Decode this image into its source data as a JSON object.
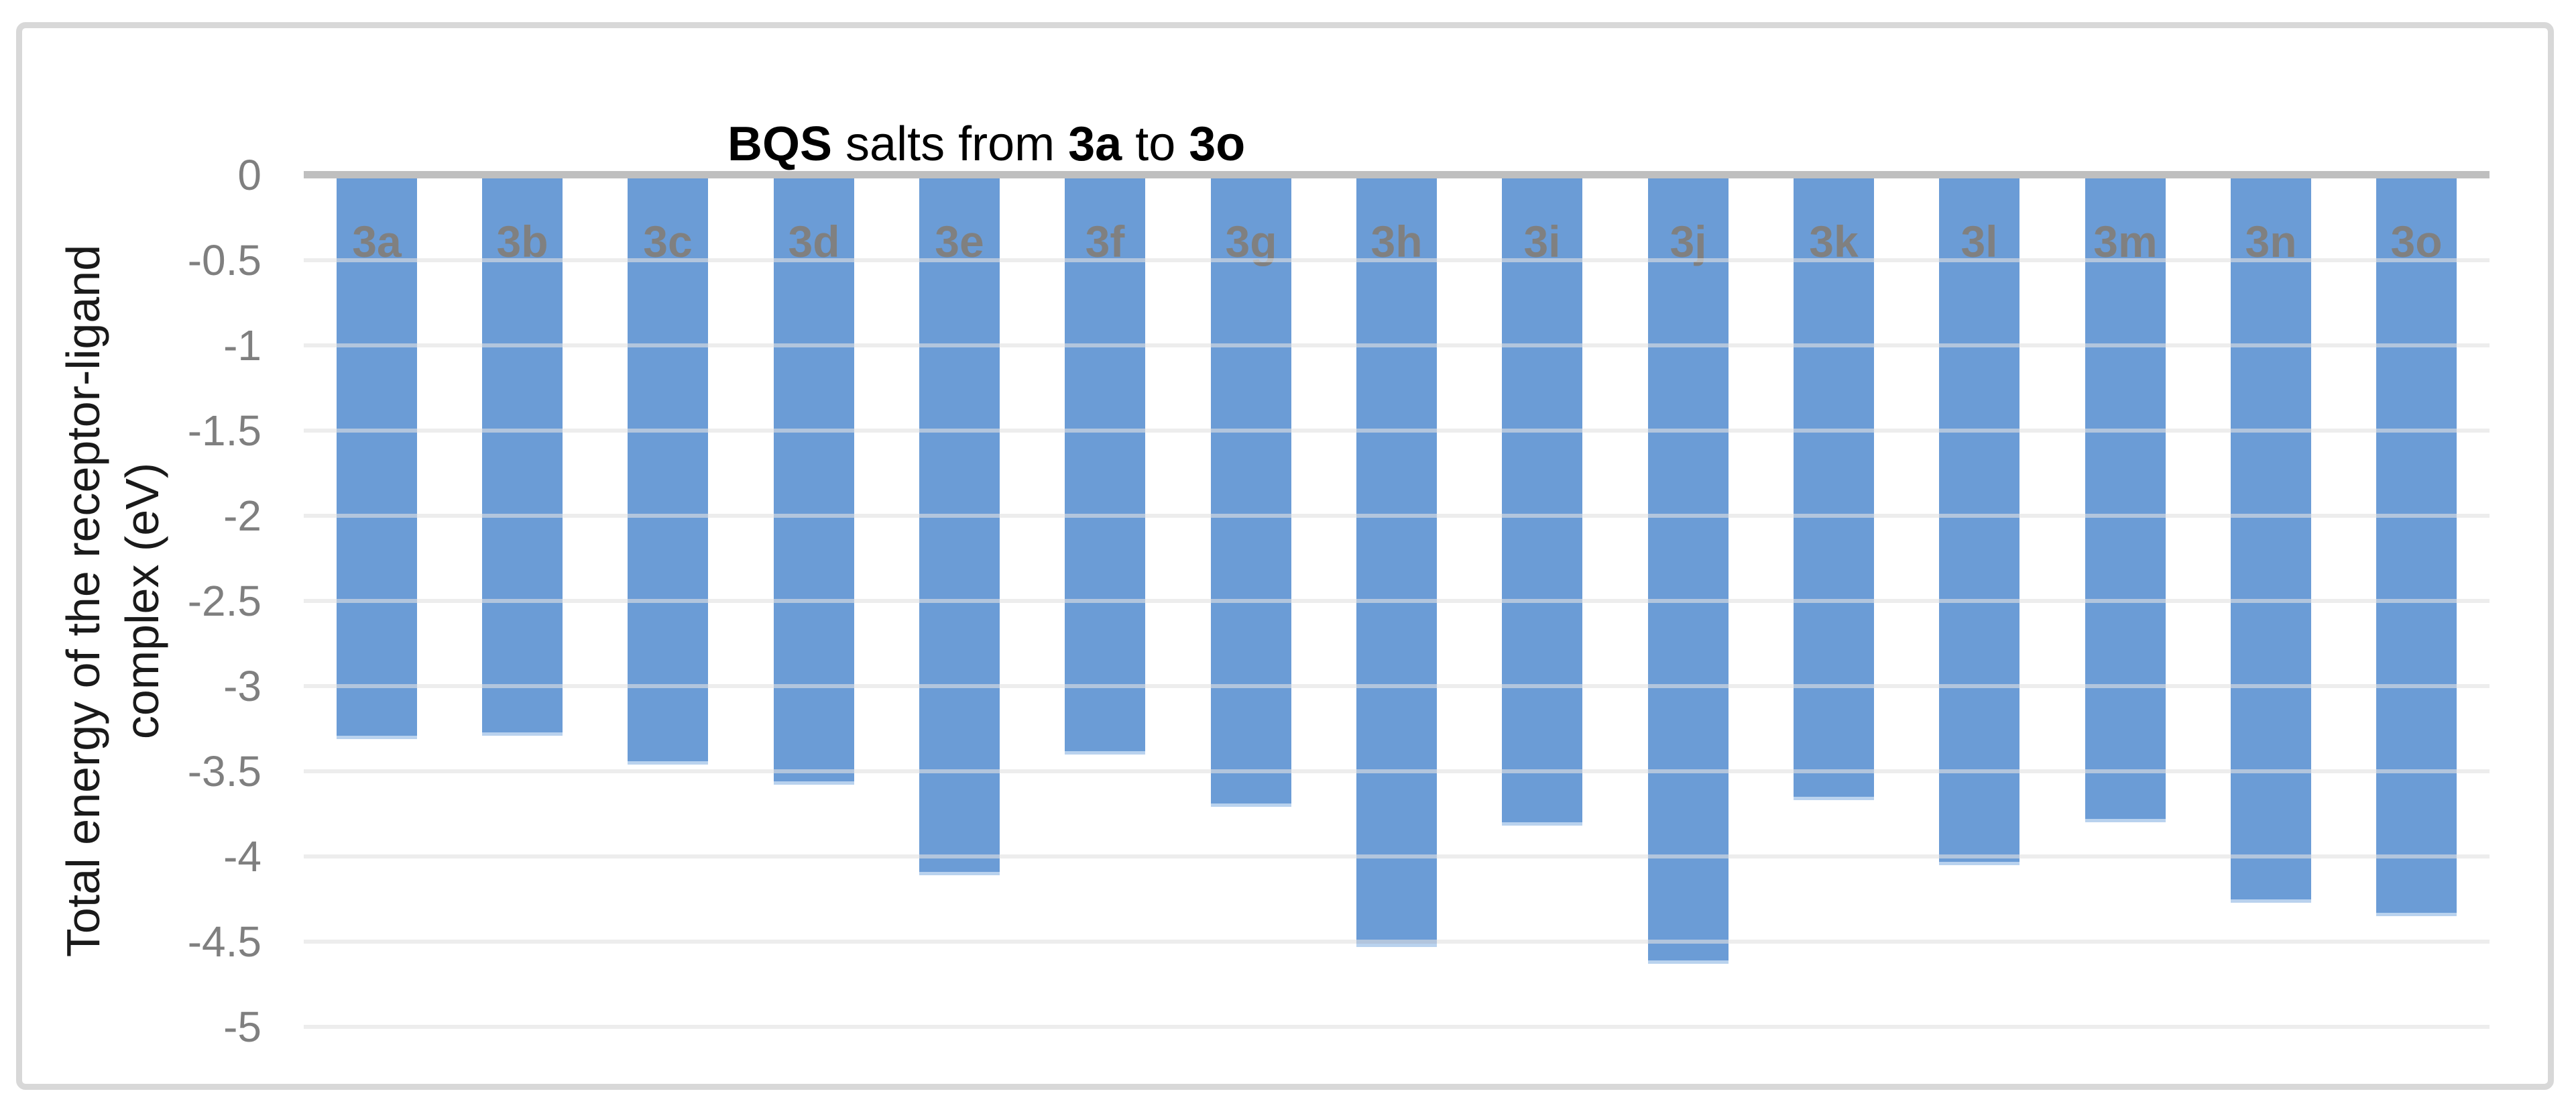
{
  "figure": {
    "kind": "excel-style bar chart figure, framed, white background"
  },
  "title": {
    "full": "BQS salts from 3a to 3o",
    "parts": [
      "BQS",
      " salts from ",
      "3a",
      " to ",
      "3o"
    ]
  },
  "y_axis": {
    "title_line1": "Total energy of the receptor-ligand",
    "title_line2": "complex (eV)"
  },
  "chart_data": {
    "type": "bar",
    "orientation": "vertical-negative",
    "title": "BQS salts from 3a to 3o",
    "xlabel": "",
    "ylabel": "Total energy of the receptor-ligand complex (eV)",
    "categories": [
      "3a",
      "3b",
      "3c",
      "3d",
      "3e",
      "3f",
      "3g",
      "3h",
      "3i",
      "3j",
      "3k",
      "3l",
      "3m",
      "3n",
      "3o"
    ],
    "values": [
      -3.31,
      -3.29,
      -3.46,
      -3.58,
      -4.11,
      -3.4,
      -3.71,
      -4.53,
      -3.82,
      -4.63,
      -3.67,
      -4.05,
      -3.8,
      -4.27,
      -4.35
    ],
    "bar_labels_position": "inside-base",
    "ylim": [
      0,
      -5
    ],
    "yticks": [
      0,
      -0.5,
      -1,
      -1.5,
      -2,
      -2.5,
      -3,
      -3.5,
      -4,
      -4.5,
      -5
    ],
    "ytick_labels": [
      "0",
      "-0.5",
      "-1",
      "-1.5",
      "-2",
      "-2.5",
      "-3",
      "-3.5",
      "-4",
      "-4.5",
      "-5"
    ],
    "grid": "horizontal-major",
    "legend": "none",
    "colors": {
      "bar_fill": "#6b9cd6",
      "bar_bottom_fringe": "#b9d2ee",
      "bar_label_text": "#808080",
      "tick_label_text": "#7f7f7f",
      "zero_axis_line": "#bfbfbf",
      "gridline": "#f1f1f1",
      "frame_border": "#d8d8d8",
      "title_text": "#000000",
      "axis_title_text": "#1a1a1a"
    }
  }
}
